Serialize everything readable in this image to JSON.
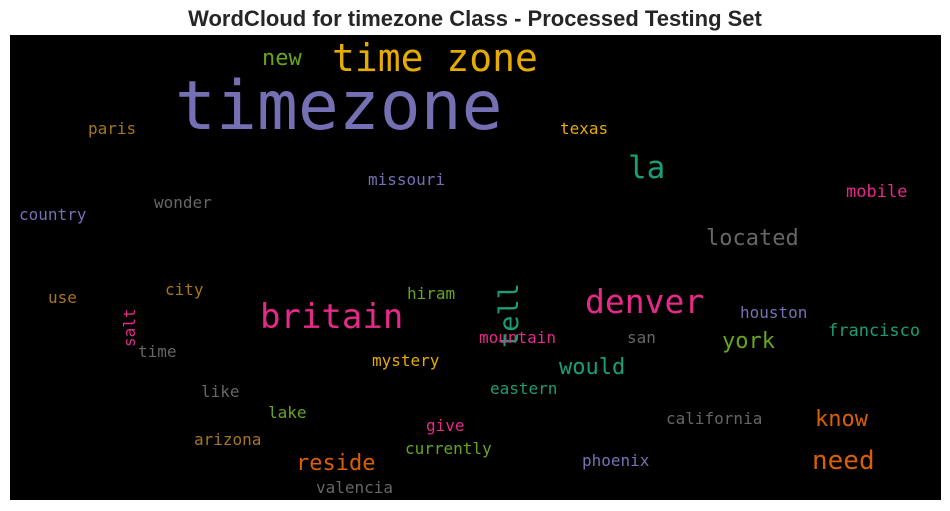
{
  "title": "WordCloud for timezone Class - Processed Testing Set",
  "chart_data": {
    "type": "wordcloud",
    "title": "WordCloud for timezone Class - Processed Testing Set",
    "background": "#000000",
    "words": [
      {
        "text": "timezone",
        "weight": 1.0,
        "color": "#7570b3"
      },
      {
        "text": "time zone",
        "weight": 0.56,
        "color": "#e6ab02"
      },
      {
        "text": "britain",
        "weight": 0.5,
        "color": "#e7298a"
      },
      {
        "text": "denver",
        "weight": 0.48,
        "color": "#e7298a"
      },
      {
        "text": "la",
        "weight": 0.46,
        "color": "#1b9e77"
      },
      {
        "text": "tell",
        "weight": 0.4,
        "color": "#1b9e77"
      },
      {
        "text": "need",
        "weight": 0.38,
        "color": "#d95f02"
      },
      {
        "text": "york",
        "weight": 0.33,
        "color": "#66a61e"
      },
      {
        "text": "reside",
        "weight": 0.33,
        "color": "#d95f02"
      },
      {
        "text": "located",
        "weight": 0.33,
        "color": "#666666"
      },
      {
        "text": "know",
        "weight": 0.33,
        "color": "#d95f02"
      },
      {
        "text": "would",
        "weight": 0.32,
        "color": "#1b9e77"
      },
      {
        "text": "new",
        "weight": 0.32,
        "color": "#66a61e"
      },
      {
        "text": "francisco",
        "weight": 0.25,
        "color": "#1b9e77"
      },
      {
        "text": "mobile",
        "weight": 0.25,
        "color": "#e7298a"
      },
      {
        "text": "missouri",
        "weight": 0.24,
        "color": "#7570b3"
      },
      {
        "text": "houston",
        "weight": 0.24,
        "color": "#7570b3"
      },
      {
        "text": "country",
        "weight": 0.24,
        "color": "#7570b3"
      },
      {
        "text": "mountain",
        "weight": 0.24,
        "color": "#e7298a"
      },
      {
        "text": "mystery",
        "weight": 0.24,
        "color": "#e6ab02"
      },
      {
        "text": "paris",
        "weight": 0.24,
        "color": "#a6761d"
      },
      {
        "text": "texas",
        "weight": 0.24,
        "color": "#e6ab02"
      },
      {
        "text": "wonder",
        "weight": 0.24,
        "color": "#666666"
      },
      {
        "text": "california",
        "weight": 0.24,
        "color": "#666666"
      },
      {
        "text": "currently",
        "weight": 0.24,
        "color": "#66a61e"
      },
      {
        "text": "phoenix",
        "weight": 0.24,
        "color": "#7570b3"
      },
      {
        "text": "valencia",
        "weight": 0.24,
        "color": "#666666"
      },
      {
        "text": "eastern",
        "weight": 0.23,
        "color": "#1b9e77"
      },
      {
        "text": "arizona",
        "weight": 0.23,
        "color": "#a6761d"
      },
      {
        "text": "city",
        "weight": 0.23,
        "color": "#a6761d"
      },
      {
        "text": "hiram",
        "weight": 0.23,
        "color": "#66a61e"
      },
      {
        "text": "salt",
        "weight": 0.23,
        "color": "#e7298a"
      },
      {
        "text": "use",
        "weight": 0.23,
        "color": "#a6761d"
      },
      {
        "text": "time",
        "weight": 0.23,
        "color": "#666666"
      },
      {
        "text": "like",
        "weight": 0.23,
        "color": "#666666"
      },
      {
        "text": "lake",
        "weight": 0.23,
        "color": "#66a61e"
      },
      {
        "text": "give",
        "weight": 0.23,
        "color": "#e7298a"
      },
      {
        "text": "san",
        "weight": 0.23,
        "color": "#666666"
      }
    ]
  }
}
